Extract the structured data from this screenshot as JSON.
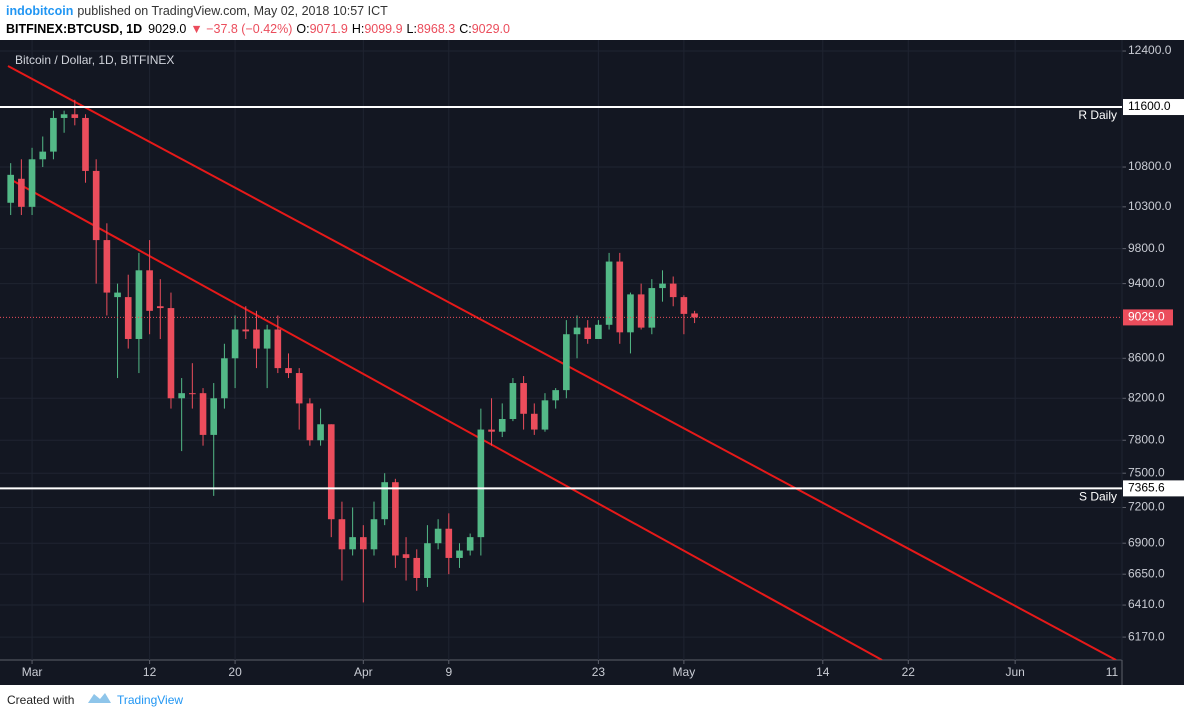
{
  "header": {
    "author": "indobitcoin",
    "published": "published on TradingView.com, May 02, 2018 10:57 ICT",
    "symbol": "BITFINEX:BTCUSD, 1D",
    "price": "9029.0",
    "change": "▼ −37.8 (−0.42%)",
    "ohlc": [
      {
        "key": "O:",
        "value": "9071.9"
      },
      {
        "key": "H:",
        "value": "9099.9"
      },
      {
        "key": "L:",
        "value": "8968.3"
      },
      {
        "key": "C:",
        "value": "9029.0"
      }
    ]
  },
  "footer": {
    "created_with": "Created with",
    "brand": "TradingView"
  },
  "chart_data": {
    "type": "candlestick",
    "title": "Bitcoin / Dollar, 1D, BITFINEX",
    "x": [
      "2018-02-27",
      "2018-02-28",
      "2018-03-01",
      "2018-03-02",
      "2018-03-03",
      "2018-03-04",
      "2018-03-05",
      "2018-03-06",
      "2018-03-07",
      "2018-03-08",
      "2018-03-09",
      "2018-03-10",
      "2018-03-11",
      "2018-03-12",
      "2018-03-13",
      "2018-03-14",
      "2018-03-15",
      "2018-03-16",
      "2018-03-17",
      "2018-03-18",
      "2018-03-19",
      "2018-03-20",
      "2018-03-21",
      "2018-03-22",
      "2018-03-23",
      "2018-03-24",
      "2018-03-25",
      "2018-03-26",
      "2018-03-27",
      "2018-03-28",
      "2018-03-29",
      "2018-03-30",
      "2018-03-31",
      "2018-04-01",
      "2018-04-02",
      "2018-04-03",
      "2018-04-04",
      "2018-04-05",
      "2018-04-06",
      "2018-04-07",
      "2018-04-08",
      "2018-04-09",
      "2018-04-10",
      "2018-04-11",
      "2018-04-12",
      "2018-04-13",
      "2018-04-14",
      "2018-04-15",
      "2018-04-16",
      "2018-04-17",
      "2018-04-18",
      "2018-04-19",
      "2018-04-20",
      "2018-04-21",
      "2018-04-22",
      "2018-04-23",
      "2018-04-24",
      "2018-04-25",
      "2018-04-26",
      "2018-04-27",
      "2018-04-28",
      "2018-04-29",
      "2018-04-30",
      "2018-05-01",
      "2018-05-02"
    ],
    "open": [
      10350,
      10650,
      10300,
      10900,
      11000,
      11450,
      11500,
      11450,
      10750,
      9900,
      9250,
      9250,
      8800,
      9550,
      9150,
      9130,
      8200,
      8250,
      8250,
      7850,
      8200,
      8600,
      8900,
      8900,
      8700,
      8900,
      8500,
      8450,
      8150,
      7800,
      7950,
      7100,
      6850,
      6950,
      6850,
      7100,
      7420,
      6810,
      6780,
      6620,
      6900,
      7020,
      6780,
      6840,
      6950,
      7900,
      7880,
      8000,
      8350,
      8050,
      7900,
      8180,
      8280,
      8850,
      8920,
      8800,
      8950,
      9650,
      8870,
      9280,
      8920,
      9350,
      9400,
      9250,
      9071.9
    ],
    "high": [
      10850,
      10900,
      11050,
      11200,
      11550,
      11550,
      11700,
      11500,
      10900,
      10100,
      9400,
      9500,
      9750,
      9900,
      9450,
      9300,
      8400,
      8550,
      8300,
      8350,
      8750,
      9050,
      9150,
      9100,
      8950,
      9050,
      8650,
      8500,
      8200,
      8100,
      7950,
      7250,
      7200,
      7050,
      7250,
      7500,
      7450,
      6950,
      6850,
      7050,
      7100,
      7150,
      6900,
      6980,
      8100,
      8200,
      8150,
      8400,
      8420,
      8150,
      8250,
      8300,
      9000,
      9050,
      9000,
      9000,
      9750,
      9750,
      9300,
      9400,
      9450,
      9550,
      9480,
      9270,
      9099.9
    ],
    "low": [
      10200,
      10200,
      10200,
      10800,
      10900,
      11250,
      11350,
      10600,
      9400,
      9050,
      8400,
      8700,
      8450,
      8850,
      8800,
      8100,
      7700,
      8100,
      7750,
      7300,
      8100,
      8300,
      8800,
      8500,
      8300,
      8450,
      8400,
      7900,
      7750,
      7750,
      6950,
      6600,
      6800,
      6430,
      6800,
      7050,
      6700,
      6600,
      6520,
      6550,
      6850,
      6650,
      6700,
      6800,
      6800,
      7750,
      7830,
      7980,
      7900,
      7850,
      7880,
      8100,
      8200,
      8600,
      8750,
      8800,
      8900,
      8750,
      8650,
      8900,
      8850,
      9200,
      9150,
      8850,
      8968.3
    ],
    "close": [
      10700,
      10300,
      10900,
      11000,
      11450,
      11500,
      11450,
      10750,
      9900,
      9300,
      9300,
      8800,
      9550,
      9100,
      9130,
      8200,
      8250,
      8240,
      7850,
      8200,
      8600,
      8900,
      8880,
      8700,
      8900,
      8500,
      8450,
      8150,
      7800,
      7950,
      7100,
      6850,
      6950,
      6850,
      7100,
      7420,
      6800,
      6780,
      6620,
      6900,
      7020,
      6780,
      6840,
      6950,
      7900,
      7880,
      8000,
      8350,
      8050,
      7900,
      8180,
      8280,
      8850,
      8920,
      8800,
      8950,
      9650,
      8870,
      9280,
      8920,
      9350,
      9400,
      9250,
      9067,
      9029
    ],
    "up_color": "#53b987",
    "down_color": "#eb4d5c",
    "log_scale": true,
    "grid": true,
    "ylim": [
      6004,
      12564
    ],
    "yticks": [
      {
        "value": 6170,
        "label": "6170.0"
      },
      {
        "value": 6410,
        "label": "6410.0"
      },
      {
        "value": 6650,
        "label": "6650.0"
      },
      {
        "value": 6900,
        "label": "6900.0"
      },
      {
        "value": 7200,
        "label": "7200.0"
      },
      {
        "value": 7500,
        "label": "7500.0"
      },
      {
        "value": 7800,
        "label": "7800.0"
      },
      {
        "value": 8200,
        "label": "8200.0"
      },
      {
        "value": 8600,
        "label": "8600.0"
      },
      {
        "value": 9400,
        "label": "9400.0"
      },
      {
        "value": 9800,
        "label": "9800.0"
      },
      {
        "value": 10300,
        "label": "10300.0"
      },
      {
        "value": 10800,
        "label": "10800.0"
      },
      {
        "value": 12400,
        "label": "12400.0"
      }
    ],
    "xlim": [
      "2018-02-26",
      "2018-06-11"
    ],
    "xticks": [
      {
        "value": "2018-03-01",
        "label": "Mar"
      },
      {
        "value": "2018-03-12",
        "label": "12"
      },
      {
        "value": "2018-03-20",
        "label": "20"
      },
      {
        "value": "2018-04-01",
        "label": "Apr"
      },
      {
        "value": "2018-04-09",
        "label": "9"
      },
      {
        "value": "2018-04-23",
        "label": "23"
      },
      {
        "value": "2018-05-01",
        "label": "May"
      },
      {
        "value": "2018-05-14",
        "label": "14"
      },
      {
        "value": "2018-05-22",
        "label": "22"
      },
      {
        "value": "2018-06-01",
        "label": "Jun"
      },
      {
        "value": "2018-06-11",
        "label": "11"
      }
    ],
    "last_price": {
      "value": 9029,
      "label": "9029.0",
      "color": "#eb4d5c"
    },
    "levels": [
      {
        "value": 11600,
        "label": "11600.0",
        "name": "R Daily"
      },
      {
        "value": 7365.6,
        "label": "7365.6",
        "name": "S Daily"
      }
    ]
  }
}
